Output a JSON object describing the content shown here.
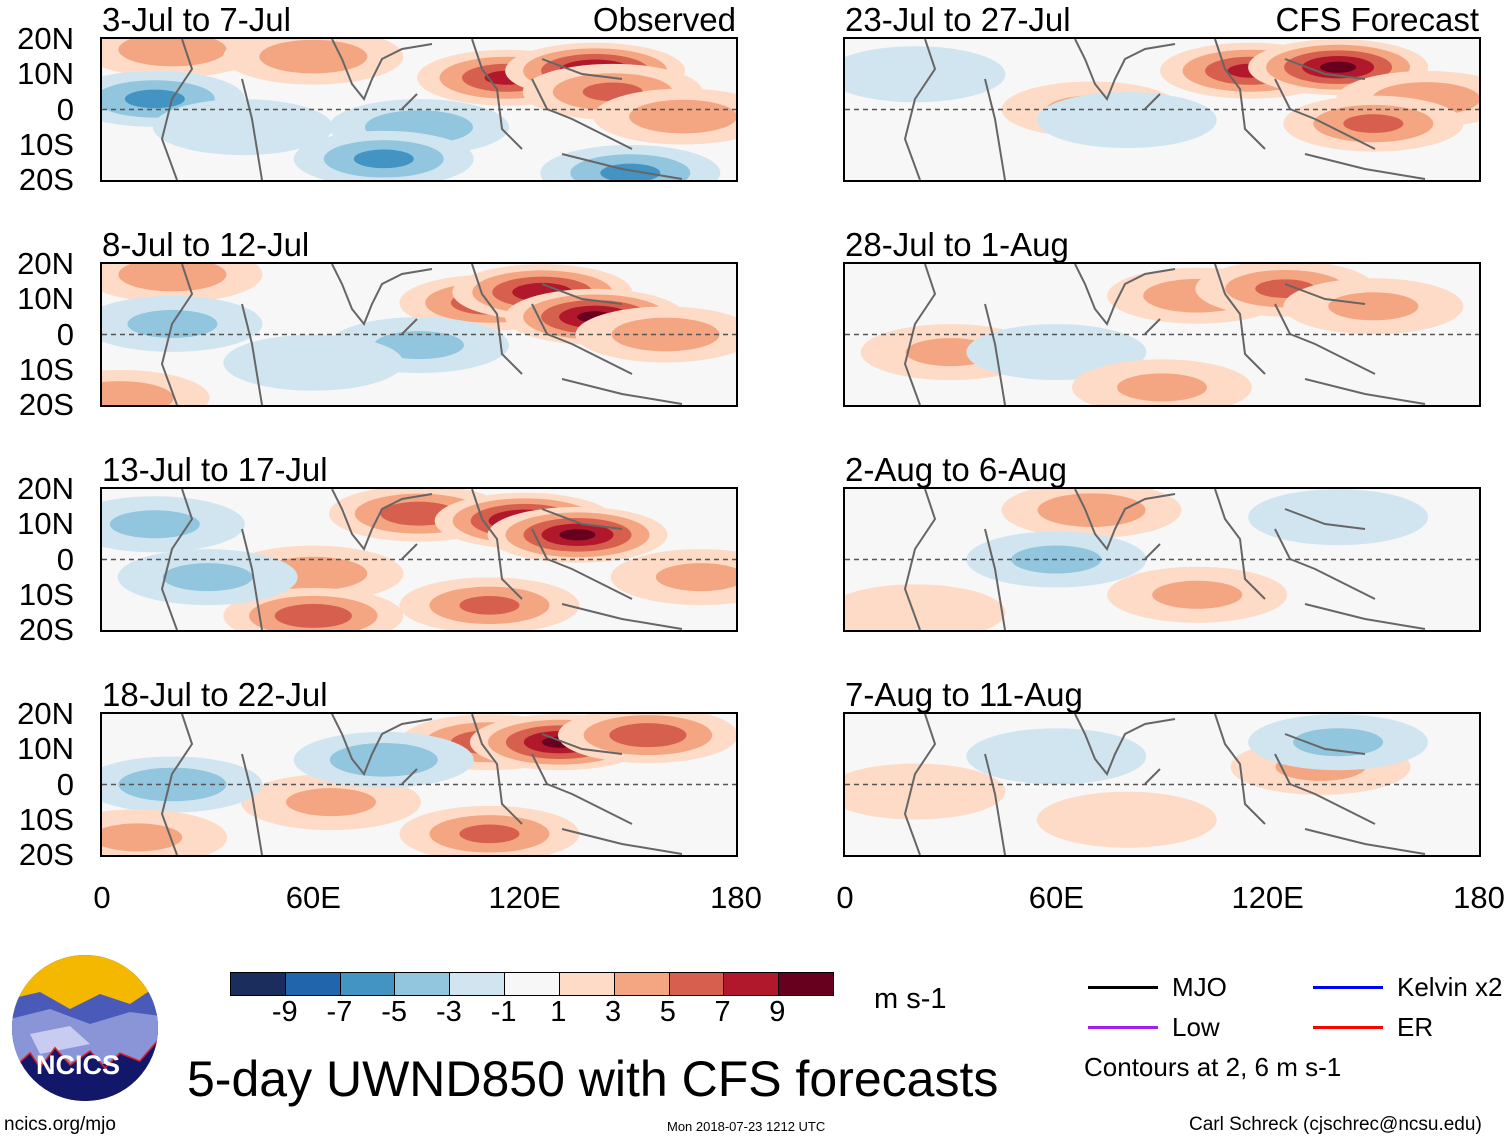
{
  "titles": {
    "observed": "Observed",
    "forecast": "CFS Forecast",
    "main": "5-day UWND850 with CFS forecasts",
    "units": "m s-1",
    "contours_note": "Contours at 2, 6 m s-1",
    "url": "ncics.org/mjo",
    "timestamp": "Mon 2018-07-23 1212 UTC",
    "author": "Carl Schreck (cjschrec@ncsu.edu)",
    "logo_text": "NCICS"
  },
  "lat_labels": [
    "20N",
    "10N",
    "0",
    "10S",
    "20S"
  ],
  "lon_labels": [
    "0",
    "60E",
    "120E",
    "180"
  ],
  "legend": [
    {
      "label": "MJO",
      "color": "#000000"
    },
    {
      "label": "Kelvin x2",
      "color": "#0000ff"
    },
    {
      "label": "Low",
      "color": "#a020f0"
    },
    {
      "label": "ER",
      "color": "#ff0000"
    }
  ],
  "colorbar": {
    "ticks": [
      "-9",
      "-7",
      "-5",
      "-3",
      "-1",
      "1",
      "3",
      "5",
      "7",
      "9"
    ],
    "colors": [
      "#1b2d5c",
      "#2166ac",
      "#4393c3",
      "#92c5de",
      "#d1e5f0",
      "#f7f7f7",
      "#fddbc7",
      "#f4a582",
      "#d6604d",
      "#b2182b",
      "#67001f"
    ]
  },
  "chart_data": {
    "type": "heatmap",
    "title": "5-day UWND850 with CFS forecasts",
    "units": "m s-1",
    "lon_range": [
      0,
      180
    ],
    "lat_range": [
      -20,
      20
    ],
    "panels": [
      {
        "period": "3-Jul to 7-Jul",
        "source": "Observed",
        "features": [
          [
            20,
            17,
            4
          ],
          [
            60,
            15,
            4
          ],
          [
            115,
            9,
            7
          ],
          [
            140,
            11,
            9
          ],
          [
            145,
            5,
            5
          ],
          [
            165,
            -2,
            4
          ],
          [
            15,
            3,
            -5
          ],
          [
            90,
            -5,
            -4
          ],
          [
            80,
            -14,
            -5
          ],
          [
            150,
            -18,
            -5
          ],
          [
            40,
            -5,
            -2
          ]
        ]
      },
      {
        "period": "8-Jul to 12-Jul",
        "source": "",
        "features": [
          [
            20,
            17,
            4
          ],
          [
            110,
            9,
            6
          ],
          [
            125,
            12,
            8
          ],
          [
            140,
            5,
            9
          ],
          [
            160,
            0,
            4
          ],
          [
            20,
            3,
            -3
          ],
          [
            90,
            -3,
            -3
          ],
          [
            60,
            -8,
            -2
          ],
          [
            5,
            -18,
            4
          ]
        ]
      },
      {
        "period": "13-Jul to 17-Jul",
        "source": "",
        "features": [
          [
            90,
            13,
            6
          ],
          [
            120,
            11,
            9
          ],
          [
            135,
            7,
            9
          ],
          [
            60,
            -4,
            4
          ],
          [
            15,
            10,
            -3
          ],
          [
            110,
            -13,
            5
          ],
          [
            60,
            -16,
            6
          ],
          [
            30,
            -5,
            -3
          ],
          [
            170,
            -5,
            3
          ]
        ]
      },
      {
        "period": "18-Jul to 22-Jul",
        "source": "",
        "features": [
          [
            110,
            12,
            6
          ],
          [
            130,
            12,
            9
          ],
          [
            155,
            14,
            6
          ],
          [
            65,
            -5,
            3
          ],
          [
            110,
            -14,
            5
          ],
          [
            20,
            0,
            -4
          ],
          [
            80,
            7,
            -4
          ],
          [
            10,
            -15,
            3
          ]
        ]
      },
      {
        "period": "23-Jul to 27-Jul",
        "source": "CFS Forecast",
        "features": [
          [
            115,
            11,
            7
          ],
          [
            140,
            12,
            9
          ],
          [
            165,
            3,
            4
          ],
          [
            70,
            0,
            3
          ],
          [
            150,
            -4,
            5
          ],
          [
            20,
            10,
            -2
          ],
          [
            80,
            -3,
            -2
          ]
        ]
      },
      {
        "period": "28-Jul to 1-Aug",
        "source": "",
        "features": [
          [
            100,
            11,
            4
          ],
          [
            125,
            13,
            5
          ],
          [
            150,
            8,
            3
          ],
          [
            30,
            -5,
            3
          ],
          [
            60,
            -5,
            -2
          ],
          [
            90,
            -15,
            3
          ]
        ]
      },
      {
        "period": "2-Aug to 6-Aug",
        "source": "",
        "features": [
          [
            70,
            14,
            4
          ],
          [
            60,
            0,
            -3
          ],
          [
            140,
            12,
            -2
          ],
          [
            100,
            -10,
            3
          ],
          [
            20,
            -15,
            2
          ]
        ]
      },
      {
        "period": "7-Aug to 11-Aug",
        "source": "",
        "features": [
          [
            135,
            5,
            3
          ],
          [
            140,
            12,
            -3
          ],
          [
            60,
            8,
            -2
          ],
          [
            80,
            -10,
            2
          ],
          [
            20,
            -2,
            2
          ]
        ]
      }
    ]
  }
}
